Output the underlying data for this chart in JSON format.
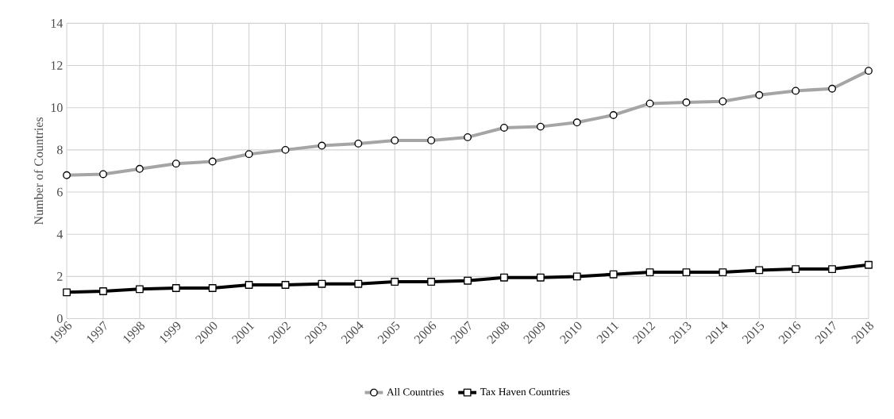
{
  "chart_data": {
    "type": "line",
    "ylabel": "Number of Countries",
    "categories": [
      "1996",
      "1997",
      "1998",
      "1999",
      "2000",
      "2001",
      "2002",
      "2003",
      "2004",
      "2005",
      "2006",
      "2007",
      "2008",
      "2009",
      "2010",
      "2011",
      "2012",
      "2013",
      "2014",
      "2015",
      "2016",
      "2017",
      "2018"
    ],
    "series": [
      {
        "name": "All Countries",
        "color": "#a5a5a5",
        "marker": "circle",
        "values": [
          6.8,
          6.85,
          7.1,
          7.35,
          7.45,
          7.8,
          8.0,
          8.2,
          8.3,
          8.45,
          8.45,
          8.6,
          9.05,
          9.1,
          9.3,
          9.65,
          10.2,
          10.25,
          10.3,
          10.6,
          10.8,
          10.9,
          11.75
        ]
      },
      {
        "name": "Tax Haven Countries",
        "color": "#000000",
        "marker": "square",
        "values": [
          1.25,
          1.3,
          1.4,
          1.45,
          1.45,
          1.6,
          1.6,
          1.65,
          1.65,
          1.75,
          1.75,
          1.8,
          1.95,
          1.95,
          2.0,
          2.1,
          2.2,
          2.2,
          2.2,
          2.3,
          2.35,
          2.35,
          2.55
        ]
      }
    ],
    "ylim": [
      0,
      14
    ],
    "yticks": [
      0,
      2,
      4,
      6,
      8,
      10,
      12,
      14
    ],
    "grid": true,
    "legend": "bottom",
    "line_style": "solid"
  }
}
